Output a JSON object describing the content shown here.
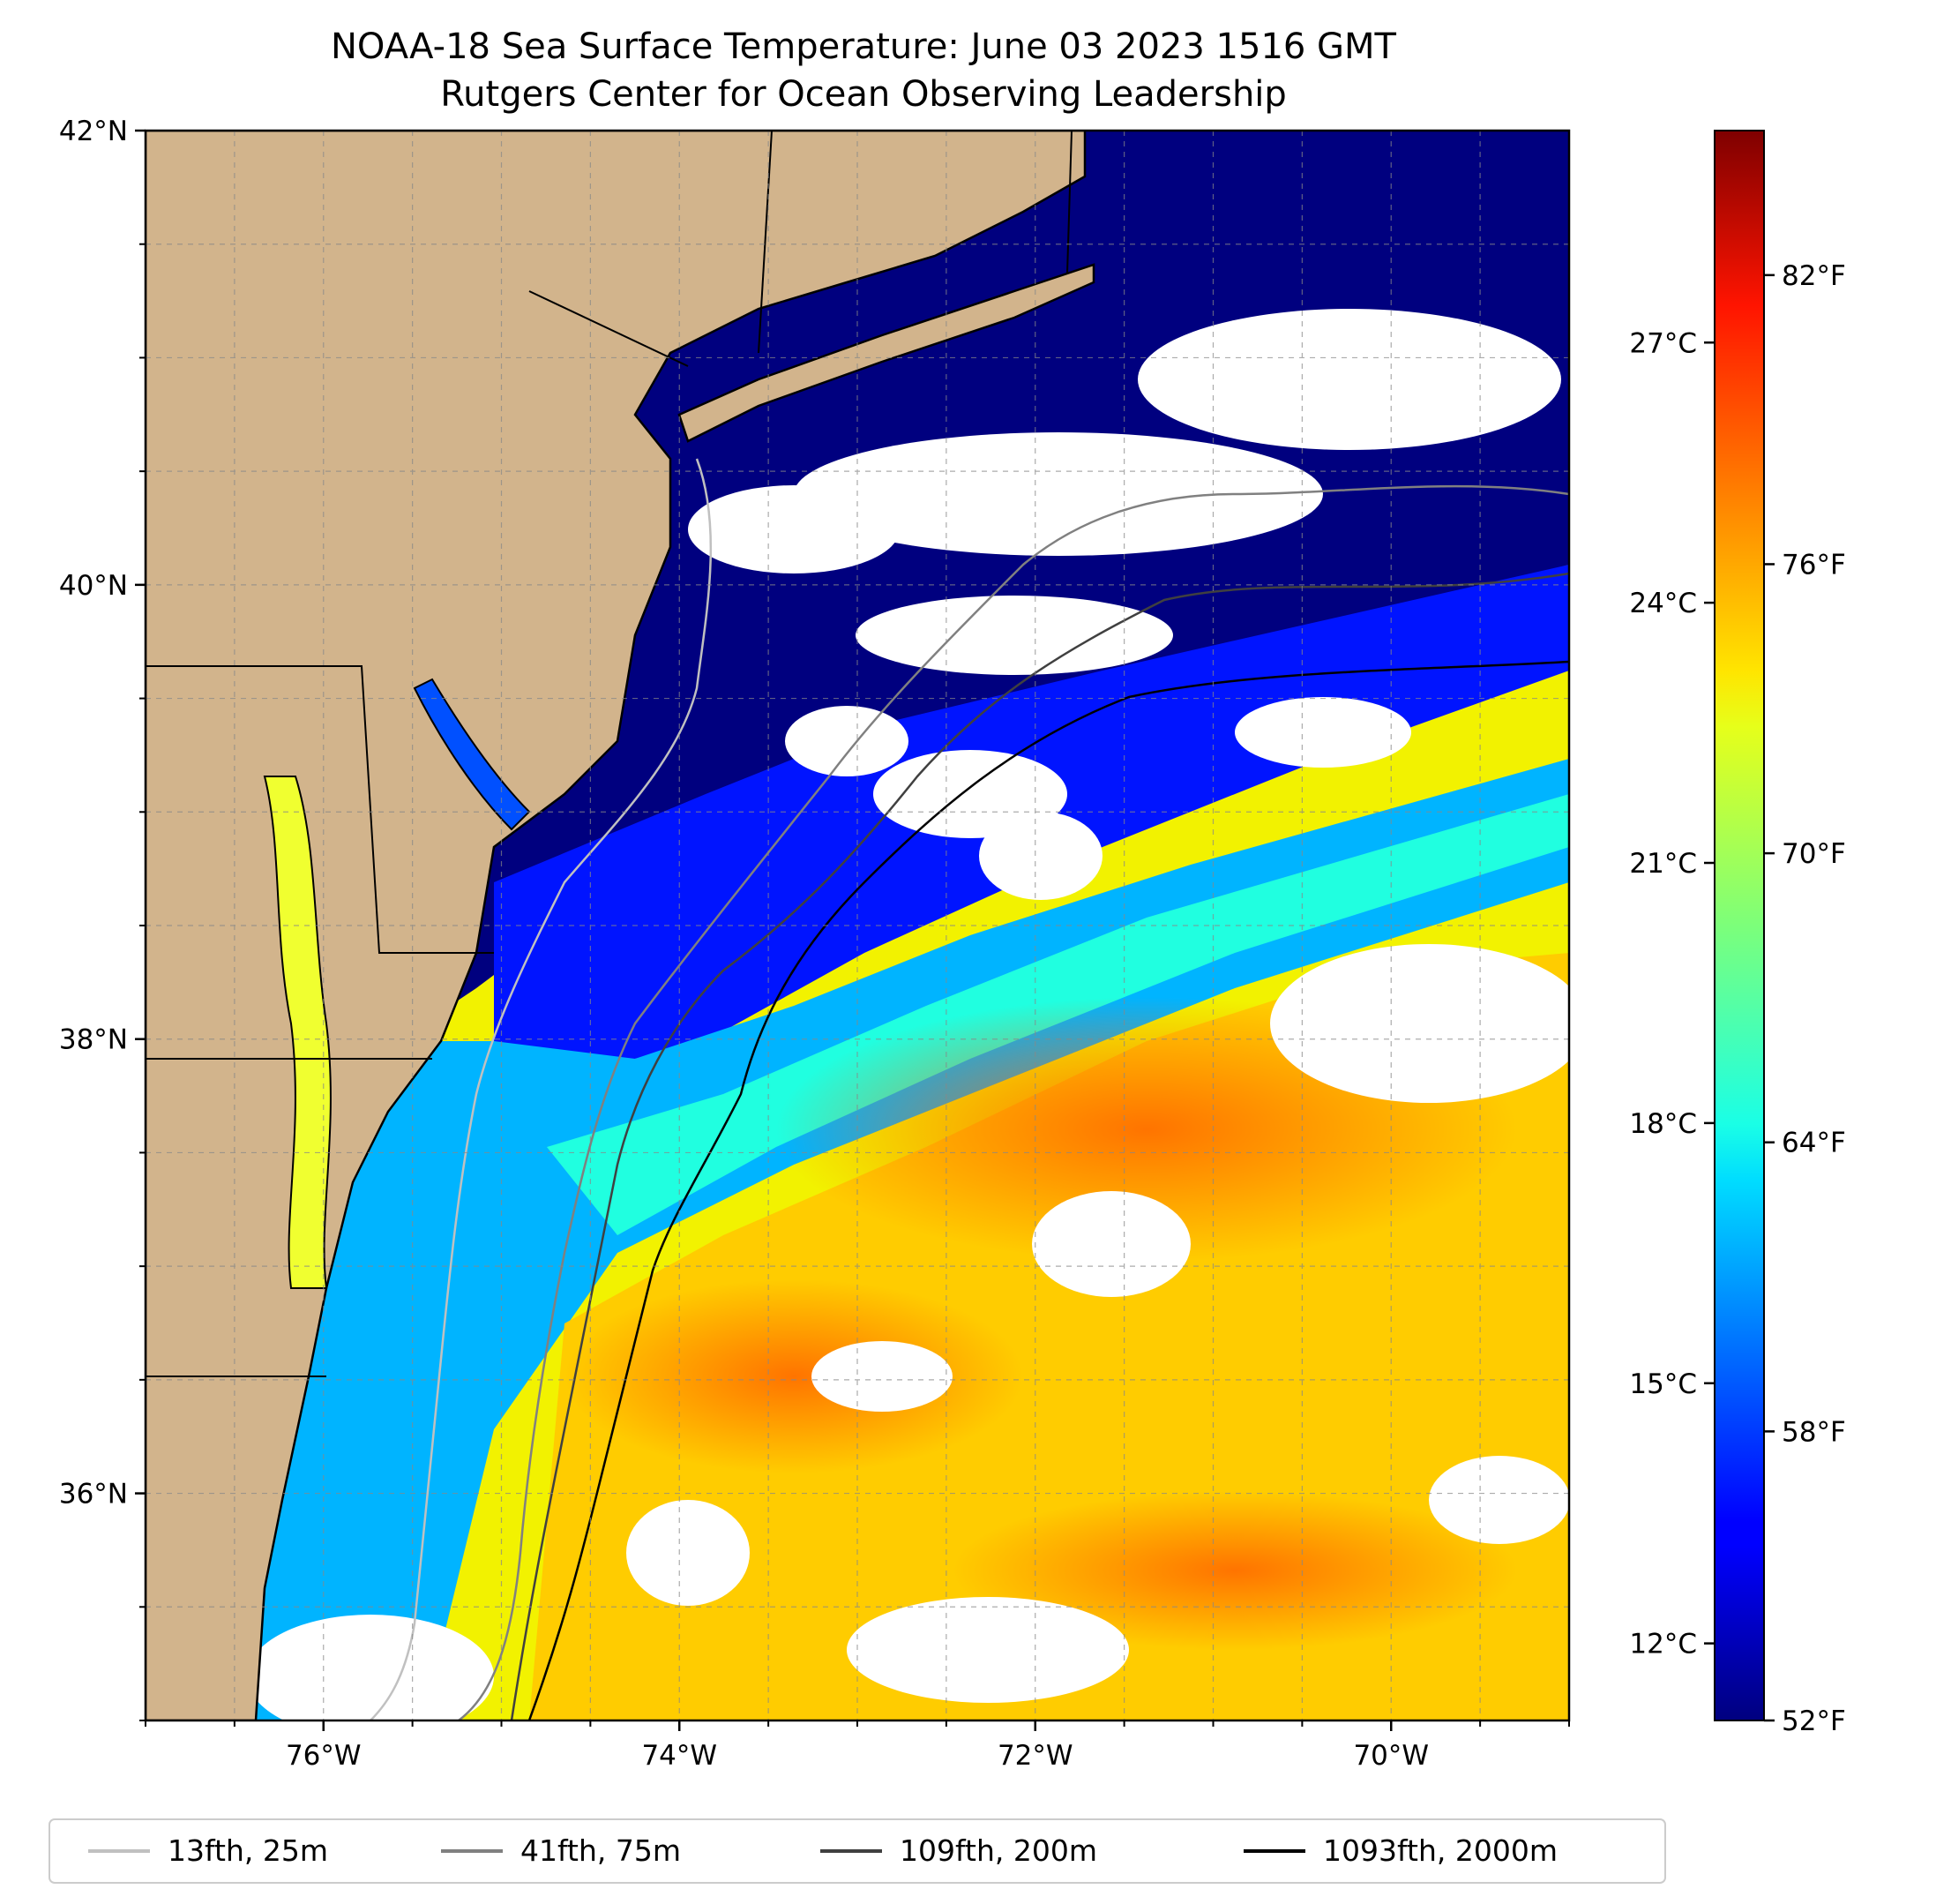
{
  "title": {
    "line1": "NOAA-18 Sea Surface Temperature: June 03 2023 1516 GMT",
    "line2": "Rutgers Center for Ocean Observing Leadership"
  },
  "map": {
    "projection": "PlateCarree",
    "lon_range": [
      -77.0,
      -69.0
    ],
    "lat_range": [
      35.0,
      42.0
    ],
    "lon_ticks": [
      {
        "value": -76,
        "label": "76°W"
      },
      {
        "value": -74,
        "label": "74°W"
      },
      {
        "value": -72,
        "label": "72°W"
      },
      {
        "value": -70,
        "label": "70°W"
      }
    ],
    "lat_ticks": [
      {
        "value": 42,
        "label": "42°N"
      },
      {
        "value": 40,
        "label": "40°N"
      },
      {
        "value": 38,
        "label": "38°N"
      },
      {
        "value": 36,
        "label": "36°N"
      }
    ],
    "gridlines": true,
    "land_color": "#d2b48c",
    "cloud_color": "#ffffff"
  },
  "colorbar": {
    "colormap": "jet",
    "range_f": [
      52,
      85
    ],
    "fahrenheit_ticks": [
      {
        "value": 52,
        "label": "52°F"
      },
      {
        "value": 58,
        "label": "58°F"
      },
      {
        "value": 64,
        "label": "64°F"
      },
      {
        "value": 70,
        "label": "70°F"
      },
      {
        "value": 76,
        "label": "76°F"
      },
      {
        "value": 82,
        "label": "82°F"
      }
    ],
    "celsius_ticks": [
      {
        "value": 12,
        "label": "12°C"
      },
      {
        "value": 15,
        "label": "15°C"
      },
      {
        "value": 18,
        "label": "18°C"
      },
      {
        "value": 21,
        "label": "21°C"
      },
      {
        "value": 24,
        "label": "24°C"
      },
      {
        "value": 27,
        "label": "27°C"
      }
    ]
  },
  "legend": {
    "placement": "bottom",
    "entries": [
      {
        "label": "13fth, 25m",
        "color": "#c0c0c0"
      },
      {
        "label": "41fth, 75m",
        "color": "#808080"
      },
      {
        "label": "109fth, 200m",
        "color": "#404040"
      },
      {
        "label": "1093fth, 2000m",
        "color": "#000000"
      }
    ]
  }
}
